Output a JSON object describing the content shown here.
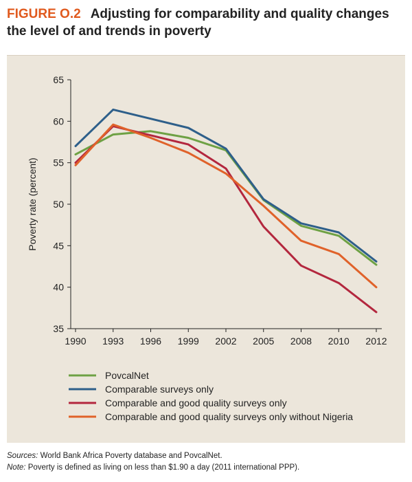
{
  "figure": {
    "label": "FIGURE O.2",
    "title": "Adjusting for comparability and quality changes the level of and trends in poverty"
  },
  "chart_data": {
    "type": "line",
    "ylabel": "Poverty rate (percent)",
    "xlabel": "",
    "categories": [
      "1990",
      "1993",
      "1996",
      "1999",
      "2002",
      "2005",
      "2008",
      "2010",
      "2012"
    ],
    "yticks": [
      "35",
      "40",
      "45",
      "50",
      "55",
      "60",
      "65"
    ],
    "ylim": [
      35,
      65
    ],
    "grid": false,
    "legend_position": "bottom-left",
    "series": [
      {
        "name": "PovcalNet",
        "color": "#6ea144",
        "values": [
          56.0,
          58.4,
          58.8,
          58.0,
          56.5,
          50.5,
          47.4,
          46.2,
          42.7
        ]
      },
      {
        "name": "Comparable surveys only",
        "color": "#2e5f8a",
        "values": [
          57.0,
          61.4,
          60.3,
          59.2,
          56.7,
          50.6,
          47.7,
          46.6,
          43.1
        ]
      },
      {
        "name": "Comparable and good quality surveys only",
        "color": "#b3273e",
        "values": [
          55.0,
          59.4,
          58.3,
          57.2,
          54.3,
          47.3,
          42.6,
          40.5,
          37.0
        ]
      },
      {
        "name": "Comparable and good quality surveys only without Nigeria",
        "color": "#e0622a",
        "values": [
          54.7,
          59.6,
          58.0,
          56.2,
          53.7,
          49.8,
          45.6,
          44.0,
          40.0
        ]
      }
    ]
  },
  "notes": {
    "sources_label": "Sources:",
    "sources_text": " World Bank Africa Poverty database and PovcalNet.",
    "note_label": "Note:",
    "note_text": " Poverty is defined as living on less than $1.90 a day (2011 international PPP)."
  }
}
